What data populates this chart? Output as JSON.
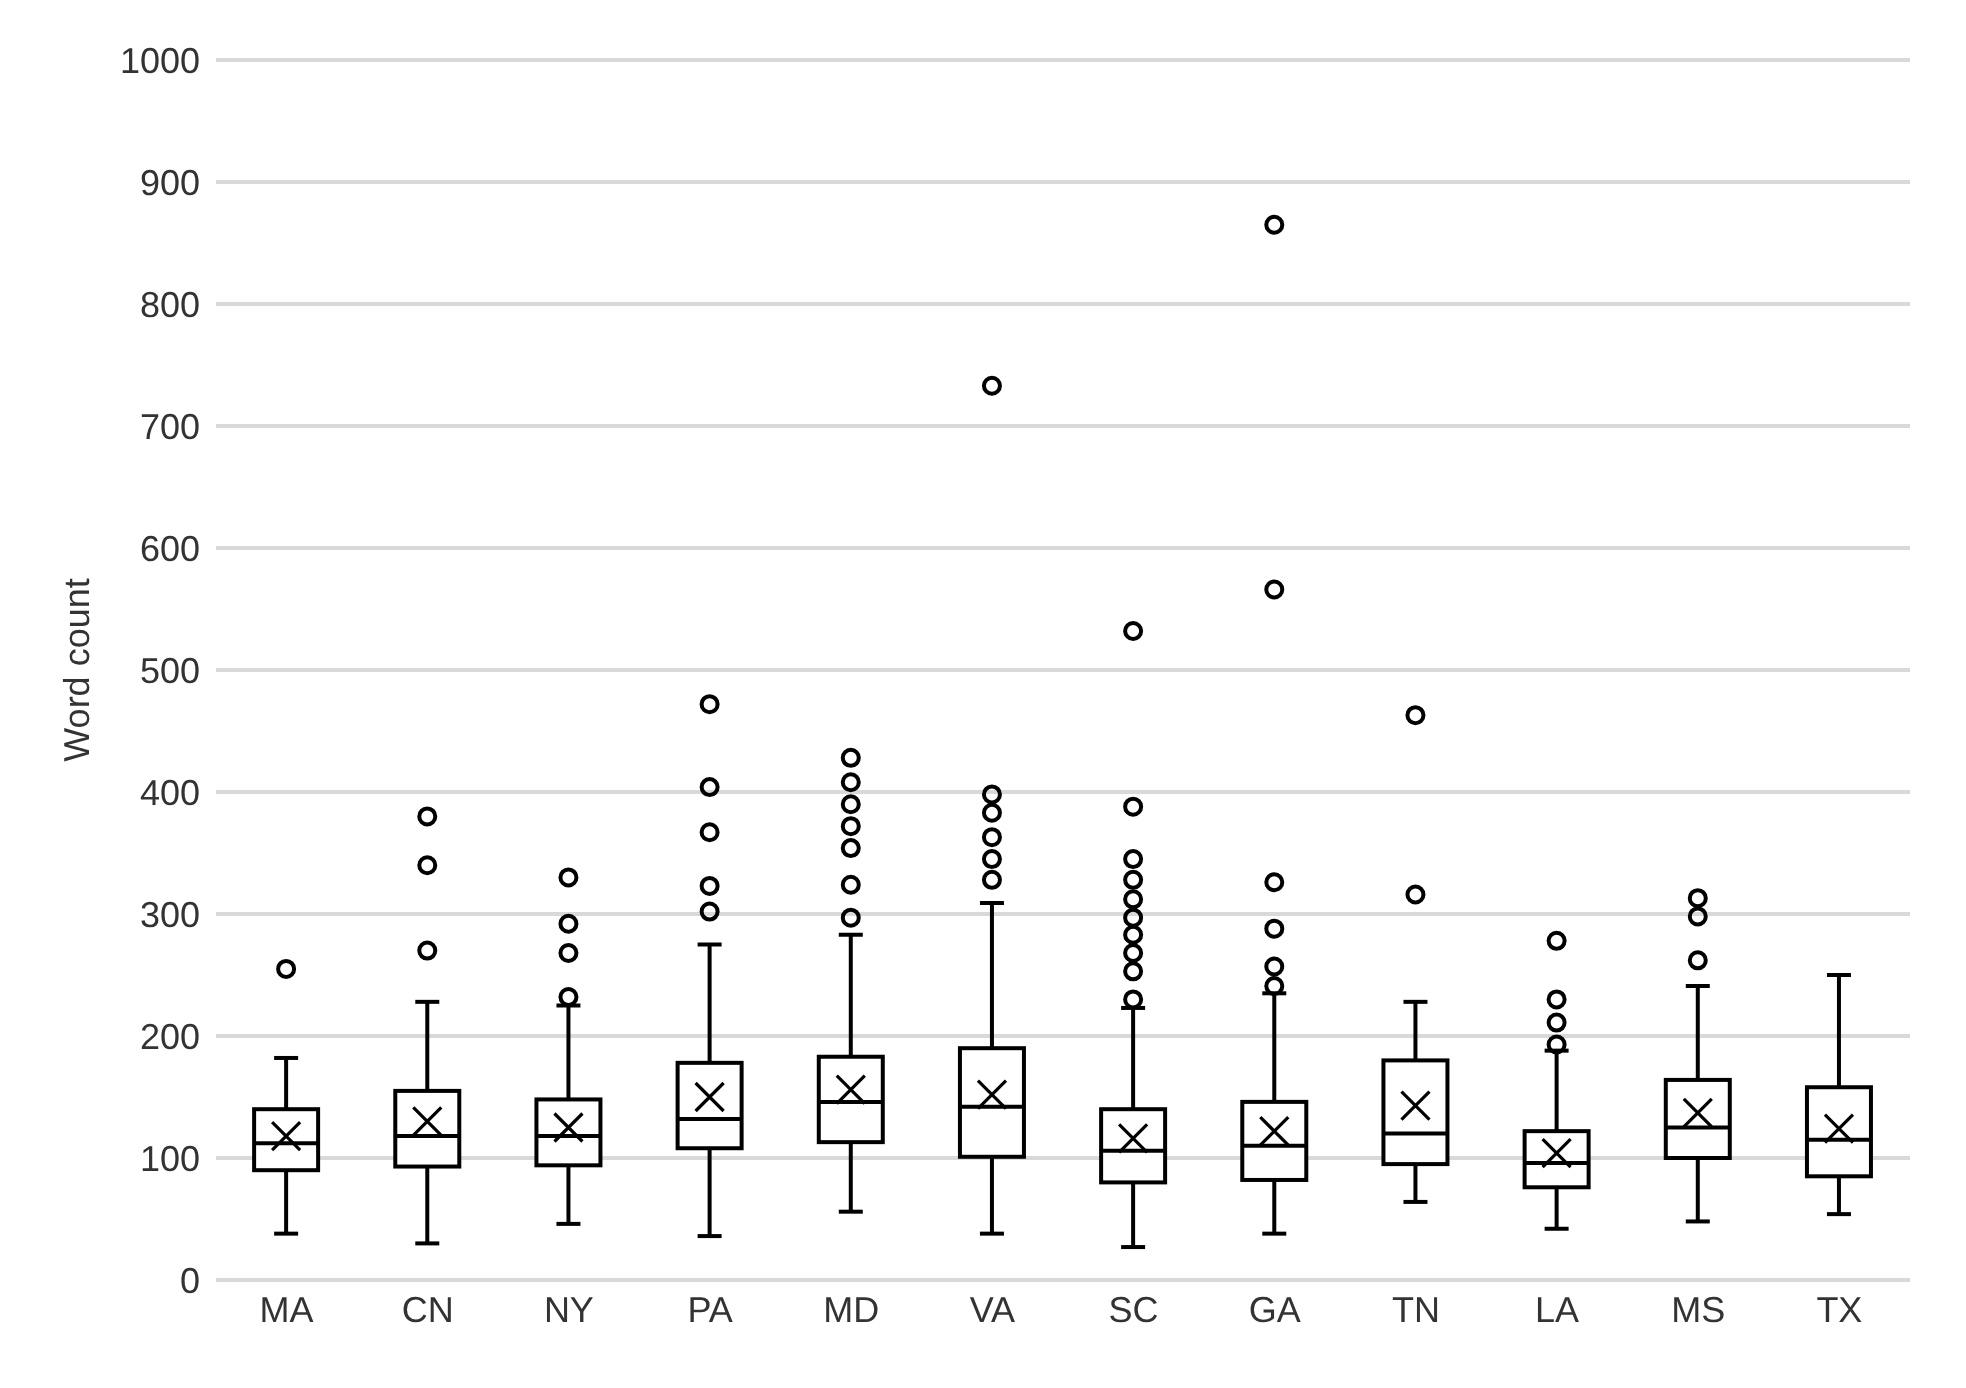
{
  "chart_data": {
    "type": "box",
    "ylabel": "Word count",
    "categories": [
      "MA",
      "CN",
      "NY",
      "PA",
      "MD",
      "VA",
      "SC",
      "GA",
      "TN",
      "LA",
      "MS",
      "TX"
    ],
    "boxes": [
      {
        "low": 38,
        "q1": 90,
        "median": 112,
        "q3": 140,
        "high": 182,
        "mean": 118,
        "outliers": [
          255
        ]
      },
      {
        "low": 30,
        "q1": 93,
        "median": 118,
        "q3": 155,
        "high": 228,
        "mean": 130,
        "outliers": [
          270,
          340,
          380
        ]
      },
      {
        "low": 46,
        "q1": 94,
        "median": 118,
        "q3": 148,
        "high": 225,
        "mean": 125,
        "outliers": [
          232,
          268,
          292,
          330
        ]
      },
      {
        "low": 36,
        "q1": 108,
        "median": 132,
        "q3": 178,
        "high": 275,
        "mean": 150,
        "outliers": [
          302,
          323,
          367,
          404,
          472
        ]
      },
      {
        "low": 56,
        "q1": 113,
        "median": 146,
        "q3": 183,
        "high": 283,
        "mean": 156,
        "outliers": [
          297,
          324,
          354,
          372,
          390,
          408,
          428
        ]
      },
      {
        "low": 38,
        "q1": 101,
        "median": 142,
        "q3": 190,
        "high": 309,
        "mean": 152,
        "outliers": [
          328,
          345,
          363,
          383,
          398,
          733
        ]
      },
      {
        "low": 27,
        "q1": 80,
        "median": 106,
        "q3": 140,
        "high": 223,
        "mean": 116,
        "outliers": [
          230,
          253,
          268,
          283,
          297,
          312,
          328,
          345,
          388,
          532
        ]
      },
      {
        "low": 38,
        "q1": 82,
        "median": 110,
        "q3": 146,
        "high": 235,
        "mean": 122,
        "outliers": [
          241,
          257,
          288,
          326,
          566,
          865
        ]
      },
      {
        "low": 64,
        "q1": 95,
        "median": 120,
        "q3": 180,
        "high": 228,
        "mean": 143,
        "outliers": [
          316,
          463
        ]
      },
      {
        "low": 42,
        "q1": 76,
        "median": 96,
        "q3": 122,
        "high": 188,
        "mean": 104,
        "outliers": [
          193,
          211,
          230,
          278
        ]
      },
      {
        "low": 48,
        "q1": 100,
        "median": 125,
        "q3": 164,
        "high": 241,
        "mean": 137,
        "outliers": [
          262,
          298,
          313
        ]
      },
      {
        "low": 54,
        "q1": 85,
        "median": 115,
        "q3": 158,
        "high": 250,
        "mean": 124
      }
    ],
    "color": "#000000",
    "ylim": [
      0,
      1000
    ],
    "yticks": [
      0,
      100,
      200,
      300,
      400,
      500,
      600,
      700,
      800,
      900,
      1000
    ],
    "grid": "y",
    "legend": false,
    "marker": "circle"
  }
}
